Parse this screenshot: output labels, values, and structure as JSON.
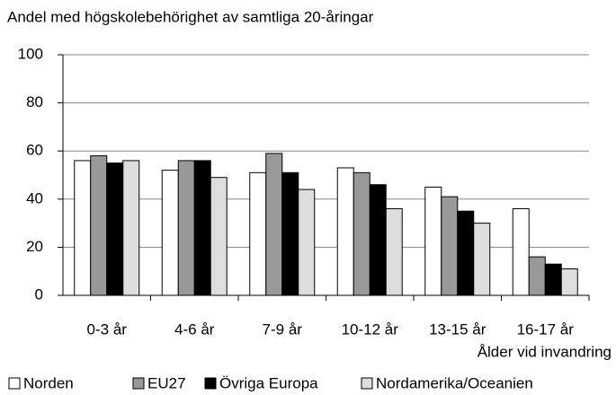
{
  "chart_data": {
    "type": "bar",
    "title": "Andel med högskolebehörighet av samtliga  20-åringar",
    "x_label": "Ålder vid invandring",
    "categories": [
      "0-3 år",
      "4-6 år",
      "7-9 år",
      "10-12 år",
      "13-15 år",
      "16-17 år"
    ],
    "series": [
      {
        "name": "Norden",
        "color": "#ffffff",
        "values": [
          56,
          52,
          51,
          53,
          45,
          36
        ]
      },
      {
        "name": "EU27",
        "color": "#999999",
        "values": [
          58,
          56,
          59,
          51,
          41,
          16
        ]
      },
      {
        "name": "Övriga Europa",
        "color": "#000000",
        "values": [
          55,
          56,
          51,
          46,
          35,
          13
        ]
      },
      {
        "name": "Nordamerika/Oceanien",
        "color": "#dddddd",
        "values": [
          56,
          49,
          44,
          36,
          30,
          11
        ]
      }
    ],
    "ylim": [
      0,
      100
    ],
    "yticks": [
      0,
      20,
      40,
      60,
      80,
      100
    ],
    "grid": true,
    "legend": "bottom"
  }
}
